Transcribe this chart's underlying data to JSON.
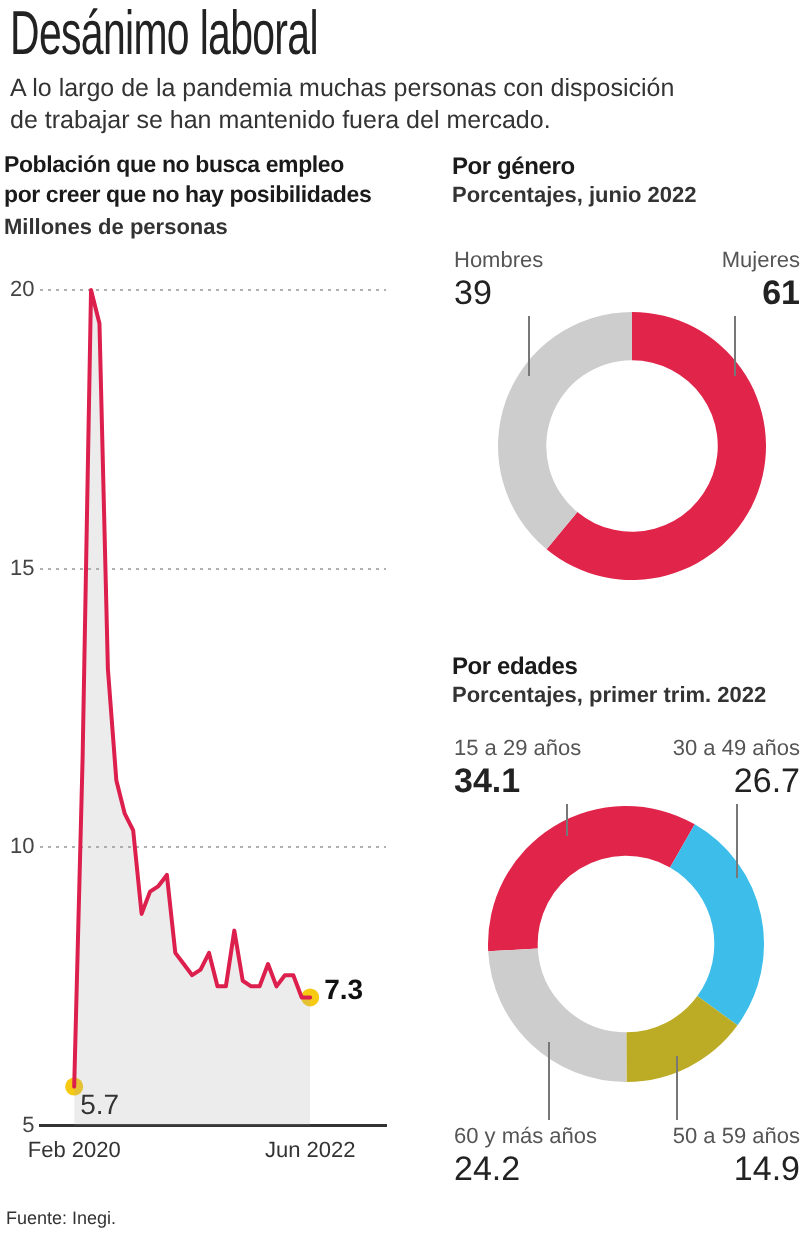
{
  "chart_data": [
    {
      "type": "other",
      "title": "Desánimo laboral",
      "subtitle": "A lo largo de la pandemia muchas personas con disposición de trabajar se han mantenido fuera del mercado."
    },
    {
      "type": "area",
      "title": "Población que no busca empleo por creer que no hay posibilidades",
      "ylabel": "Millones de personas",
      "x": [
        "2020-02",
        "2020-03",
        "2020-04",
        "2020-05",
        "2020-06",
        "2020-07",
        "2020-08",
        "2020-09",
        "2020-10",
        "2020-11",
        "2020-12",
        "2021-01",
        "2021-02",
        "2021-03",
        "2021-04",
        "2021-05",
        "2021-06",
        "2021-07",
        "2021-08",
        "2021-09",
        "2021-10",
        "2021-11",
        "2021-12",
        "2022-01",
        "2022-02",
        "2022-03",
        "2022-04",
        "2022-05",
        "2022-06"
      ],
      "xlim": [
        "2019-10",
        "2023-03"
      ],
      "xticks": [
        {
          "value": "2020-02",
          "label": "Feb 2020"
        },
        {
          "value": "2022-06",
          "label": "Jun 2022"
        }
      ],
      "ylim": [
        5,
        20
      ],
      "yticks": [
        5,
        10,
        15,
        20
      ],
      "grid": "y",
      "series": [
        {
          "color": "#dc1f4c",
          "values": [
            5.7,
            11.6,
            20.0,
            19.4,
            13.2,
            11.2,
            10.6,
            10.3,
            8.8,
            9.2,
            9.3,
            9.5,
            8.1,
            7.9,
            7.7,
            7.8,
            8.1,
            7.5,
            7.5,
            8.5,
            7.6,
            7.5,
            7.5,
            7.9,
            7.5,
            7.7,
            7.7,
            7.3,
            7.3
          ]
        },
        {
          "type": "scatter",
          "x": [
            "2020-02",
            "2022-06"
          ],
          "color": "#f6c913",
          "values": [
            5.7,
            7.3
          ],
          "value_labels": [
            "5.7",
            "7.3"
          ]
        }
      ],
      "annotations": [
        "Fuente: Inegi."
      ]
    },
    {
      "type": "donut",
      "title": "Por género",
      "subtitle": "Porcentajes, junio 2022",
      "categories": [
        "Mujeres",
        "Hombres"
      ],
      "values": [
        61,
        39
      ],
      "colors": [
        "#e0244a",
        "#cdcdcd"
      ],
      "data_labels": true
    },
    {
      "type": "donut",
      "title": "Por edades",
      "subtitle": "Porcentajes, primer trim. 2022",
      "categories": [
        "15 a 29 años",
        "30 a 49 años",
        "50 a 59 años",
        "60 y más años"
      ],
      "values": [
        34.1,
        26.7,
        14.9,
        24.2
      ],
      "colors": [
        "#e0244a",
        "#3dbde9",
        "#bcac25",
        "#cdcdcd"
      ],
      "data_labels": true
    }
  ]
}
